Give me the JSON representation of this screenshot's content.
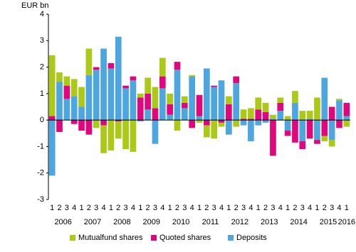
{
  "chart_data": {
    "type": "stacked-bar",
    "y_label": "EUR bn",
    "categories": [
      "1",
      "2",
      "3",
      "4",
      "1",
      "2",
      "3",
      "4",
      "1",
      "2",
      "3",
      "4",
      "1",
      "2",
      "3",
      "4",
      "1",
      "2",
      "3",
      "4",
      "1",
      "2",
      "3",
      "4",
      "1",
      "2",
      "3",
      "4",
      "1",
      "2",
      "3",
      "4",
      "1",
      "2",
      "3",
      "4",
      "1",
      "2",
      "3",
      "4",
      "1"
    ],
    "years": [
      "2006",
      "2007",
      "2008",
      "2009",
      "2010",
      "2011",
      "2012",
      "2013",
      "2014",
      "2015",
      "2016"
    ],
    "series": [
      {
        "name": "Deposits",
        "color": "#4da6df",
        "values": [
          -2.1,
          1.45,
          0.8,
          0.9,
          0.5,
          1.7,
          1.9,
          2.7,
          1.95,
          3.15,
          1.2,
          1.5,
          -0.05,
          0.4,
          -0.9,
          1.2,
          0.2,
          1.9,
          0.45,
          1.65,
          0.15,
          1.95,
          1.25,
          1.5,
          -0.55,
          1.4,
          -0.2,
          -0.8,
          -0.2,
          -0.1,
          0.05,
          0.35,
          -0.4,
          0.65,
          -0.8,
          0.05,
          -0.75,
          1.6,
          -0.75,
          0.75,
          0.15
        ]
      },
      {
        "name": "Quoted shares",
        "color": "#e2067e",
        "values": [
          0.15,
          -0.45,
          0.5,
          -0.15,
          -0.4,
          -0.55,
          0.1,
          -0.2,
          0.2,
          -0.05,
          0.1,
          0.15,
          0.85,
          0.6,
          0.45,
          0.45,
          0.4,
          0.3,
          0.2,
          -0.3,
          0.8,
          -0.2,
          0.05,
          -0.1,
          0.6,
          0.25,
          0.05,
          0.05,
          0.4,
          0.3,
          -1.35,
          0.3,
          -0.2,
          -0.85,
          -0.3,
          -0.7,
          -0.15,
          -0.6,
          0.5,
          -0.3,
          0.5
        ]
      },
      {
        "name": "Mutualfund shares",
        "color": "#adc918",
        "values": [
          2.3,
          0.35,
          0.35,
          0.65,
          0.75,
          1.0,
          -0.3,
          -1.05,
          -1.15,
          -0.65,
          -1.1,
          -1.2,
          0.15,
          0.6,
          0.8,
          0.7,
          0.4,
          -0.4,
          0.25,
          0.05,
          -0.1,
          -0.45,
          -0.7,
          -0.15,
          0.3,
          -0.25,
          0.35,
          0.4,
          0.45,
          0.35,
          0.15,
          0.2,
          0.15,
          0.45,
          0.35,
          0.3,
          0.85,
          -0.2,
          -0.25,
          0.05,
          -0.25
        ]
      }
    ],
    "legend_order": [
      2,
      1,
      0
    ],
    "ylim": [
      -3,
      4
    ],
    "yticks": [
      -3,
      -2,
      -1,
      0,
      1,
      2,
      3,
      4
    ],
    "grid": false
  }
}
